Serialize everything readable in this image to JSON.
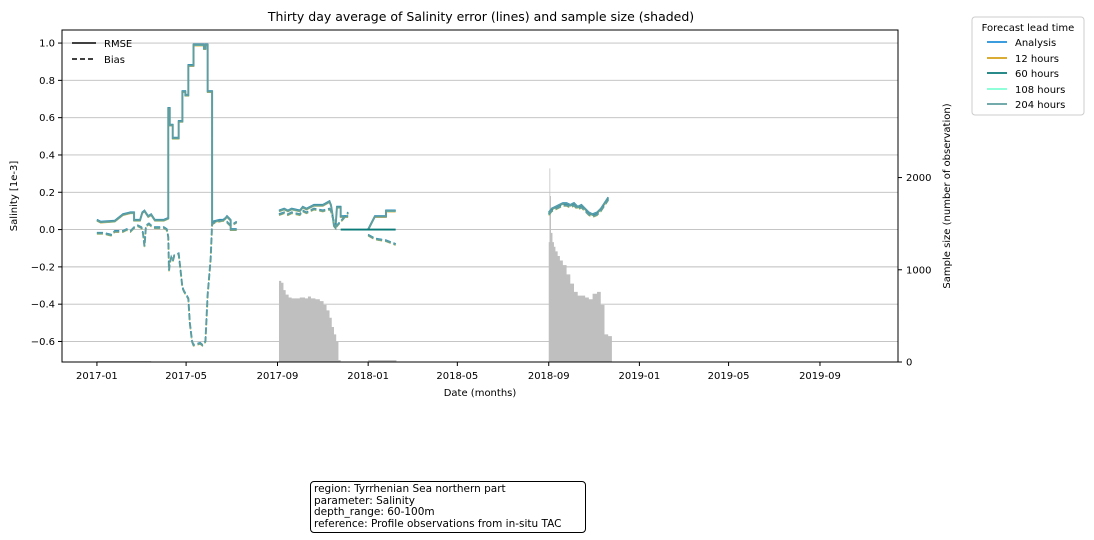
{
  "chart_data": {
    "type": "line",
    "title": "Thirty day average of Salinity error (lines) and sample size (shaded)",
    "xlabel": "Date (months)",
    "ylabel": "Salinity [1e-3]",
    "y2label": "Sample size (number of observation)",
    "xlim": [
      "2016-11-15",
      "2019-12-15"
    ],
    "ylim": [
      -0.71,
      1.07
    ],
    "y2lim": [
      0,
      3600
    ],
    "x_ticks": [
      "2017-01",
      "2017-05",
      "2017-09",
      "2018-01",
      "2018-05",
      "2018-09",
      "2019-01",
      "2019-05",
      "2019-09"
    ],
    "y_ticks": [
      1.0,
      0.8,
      0.6,
      0.4,
      0.2,
      0.0,
      -0.2,
      -0.4,
      -0.6
    ],
    "y_tick_labels": [
      "1.0",
      "0.8",
      "0.6",
      "0.4",
      "0.2",
      "0.0",
      "−0.2",
      "−0.4",
      "−0.6"
    ],
    "y2_ticks": [
      0,
      1000,
      2000
    ],
    "grid": "horizontal",
    "style_legend": {
      "placement": "top-left",
      "entries": [
        {
          "label": "RMSE",
          "dash": "solid"
        },
        {
          "label": "Bias",
          "dash": "dashed"
        }
      ]
    },
    "series_legend": {
      "title": "Forecast lead time",
      "placement": "outside-right",
      "entries": [
        {
          "label": "Analysis",
          "color": "#1f8fd8"
        },
        {
          "label": "12 hours",
          "color": "#d4a017"
        },
        {
          "label": "60 hours",
          "color": "#0a7a78"
        },
        {
          "label": "108 hours",
          "color": "#7fffd4"
        },
        {
          "label": "204 hours",
          "color": "#5f9ea0"
        }
      ]
    },
    "rmse": [
      {
        "x": [
          "2017-01-01",
          "2017-01-06",
          "2017-01-06",
          "2017-01-25",
          "2017-02-05",
          "2017-02-05",
          "2017-02-15",
          "2017-02-20",
          "2017-02-20",
          "2017-02-28",
          "2017-03-03",
          "2017-03-06",
          "2017-03-11",
          "2017-03-15",
          "2017-03-20",
          "2017-04-01",
          "2017-04-07",
          "2017-04-07",
          "2017-04-09",
          "2017-04-09",
          "2017-04-13",
          "2017-04-13",
          "2017-04-21",
          "2017-04-21",
          "2017-04-26",
          "2017-04-26",
          "2017-04-30",
          "2017-04-30",
          "2017-05-04",
          "2017-05-04",
          "2017-05-11",
          "2017-05-11",
          "2017-05-25",
          "2017-05-25",
          "2017-05-27",
          "2017-05-27",
          "2017-05-30",
          "2017-05-30",
          "2017-06-05",
          "2017-06-05",
          "2017-06-15",
          "2017-06-20",
          "2017-06-23",
          "2017-06-25",
          "2017-06-30",
          "2017-06-30",
          "2017-07-08"
        ],
        "y": [
          0.05,
          0.04,
          0.04,
          0.045,
          0.08,
          0.08,
          0.09,
          0.09,
          0.05,
          0.05,
          0.09,
          0.1,
          0.07,
          0.08,
          0.05,
          0.05,
          0.06,
          0.65,
          0.65,
          0.56,
          0.56,
          0.49,
          0.49,
          0.58,
          0.58,
          0.74,
          0.74,
          0.72,
          0.72,
          0.88,
          0.88,
          0.99,
          0.99,
          0.97,
          0.97,
          0.99,
          0.99,
          0.74,
          0.74,
          0.04,
          0.05,
          0.05,
          0.06,
          0.07,
          0.05,
          0.0,
          0.0
        ]
      },
      {
        "x": [
          "2017-09-03",
          "2017-09-10",
          "2017-09-15",
          "2017-09-20",
          "2017-10-01",
          "2017-10-05",
          "2017-10-10",
          "2017-10-20",
          "2017-11-01",
          "2017-11-10",
          "2017-11-12",
          "2017-11-14",
          "2017-11-16",
          "2017-11-18",
          "2017-11-20",
          "2017-11-25",
          "2017-11-25",
          "2017-12-05"
        ],
        "y": [
          0.1,
          0.11,
          0.1,
          0.11,
          0.1,
          0.12,
          0.11,
          0.13,
          0.13,
          0.15,
          0.13,
          0.08,
          0.02,
          0.01,
          0.12,
          0.12,
          0.07,
          0.07
        ]
      },
      {
        "x": [
          "2018-01-01",
          "2018-01-10",
          "2018-01-25",
          "2018-01-25",
          "2018-02-07"
        ],
        "y": [
          0.0,
          0.07,
          0.07,
          0.1,
          0.1
        ]
      },
      {
        "x": [
          "2017-11-25",
          "2018-01-01",
          "2018-01-01",
          "2018-02-07"
        ],
        "y": [
          0.0,
          0.0,
          0.0,
          0.0
        ],
        "color": "#0a7a78"
      },
      {
        "x": [
          "2018-09-01",
          "2018-09-05",
          "2018-09-10",
          "2018-09-15",
          "2018-09-20",
          "2018-09-25",
          "2018-09-30",
          "2018-10-05",
          "2018-10-10",
          "2018-10-15",
          "2018-10-20",
          "2018-10-25",
          "2018-10-30",
          "2018-11-05",
          "2018-11-10",
          "2018-11-15",
          "2018-11-20"
        ],
        "y": [
          0.09,
          0.11,
          0.12,
          0.13,
          0.14,
          0.14,
          0.13,
          0.14,
          0.12,
          0.13,
          0.11,
          0.09,
          0.08,
          0.09,
          0.11,
          0.14,
          0.17
        ]
      }
    ],
    "bias": [
      {
        "x": [
          "2017-01-01",
          "2017-01-10",
          "2017-01-20",
          "2017-01-25",
          "2017-02-05",
          "2017-02-10",
          "2017-02-15",
          "2017-02-20",
          "2017-02-25",
          "2017-03-02",
          "2017-03-04",
          "2017-03-06",
          "2017-03-08",
          "2017-03-12",
          "2017-03-15",
          "2017-03-20",
          "2017-04-01",
          "2017-04-05",
          "2017-04-07",
          "2017-04-08",
          "2017-04-09",
          "2017-04-11",
          "2017-04-13",
          "2017-04-15",
          "2017-04-21",
          "2017-04-23",
          "2017-04-26",
          "2017-04-28",
          "2017-05-04",
          "2017-05-06",
          "2017-05-09",
          "2017-05-11",
          "2017-05-20",
          "2017-05-23",
          "2017-05-27",
          "2017-05-30",
          "2017-06-03",
          "2017-06-05",
          "2017-06-09",
          "2017-06-20",
          "2017-06-25",
          "2017-06-30",
          "2017-07-08"
        ],
        "y": [
          -0.02,
          -0.02,
          -0.03,
          -0.01,
          -0.01,
          0.0,
          -0.01,
          0.01,
          0.02,
          0.01,
          -0.02,
          -0.09,
          0.02,
          0.03,
          0.02,
          0.01,
          0.01,
          0.0,
          -0.04,
          -0.22,
          -0.18,
          -0.15,
          -0.17,
          -0.14,
          -0.13,
          -0.2,
          -0.31,
          -0.33,
          -0.37,
          -0.5,
          -0.6,
          -0.62,
          -0.61,
          -0.62,
          -0.6,
          -0.35,
          -0.16,
          0.03,
          0.04,
          0.05,
          0.04,
          0.02,
          0.04
        ]
      },
      {
        "x": [
          "2017-09-03",
          "2017-09-10",
          "2017-09-15",
          "2017-09-20",
          "2017-10-01",
          "2017-10-05",
          "2017-10-10",
          "2017-10-20",
          "2017-11-01",
          "2017-11-10",
          "2017-11-12",
          "2017-11-16",
          "2017-11-20",
          "2017-12-01",
          "2017-12-05"
        ],
        "y": [
          0.08,
          0.09,
          0.08,
          0.09,
          0.08,
          0.1,
          0.09,
          0.11,
          0.1,
          0.11,
          0.1,
          0.04,
          0.02,
          0.07,
          0.09
        ]
      },
      {
        "x": [
          "2018-01-01",
          "2018-01-10",
          "2018-01-25",
          "2018-02-07"
        ],
        "y": [
          -0.03,
          -0.05,
          -0.06,
          -0.08
        ]
      },
      {
        "x": [
          "2018-09-01",
          "2018-09-05",
          "2018-09-10",
          "2018-09-15",
          "2018-09-20",
          "2018-09-25",
          "2018-09-30",
          "2018-10-05",
          "2018-10-10",
          "2018-10-15",
          "2018-10-20",
          "2018-10-25",
          "2018-10-30",
          "2018-11-05",
          "2018-11-10",
          "2018-11-15",
          "2018-11-20"
        ],
        "y": [
          0.08,
          0.1,
          0.11,
          0.12,
          0.13,
          0.13,
          0.12,
          0.13,
          0.11,
          0.12,
          0.1,
          0.08,
          0.07,
          0.08,
          0.1,
          0.13,
          0.16
        ]
      }
    ],
    "sample_size": {
      "x": [
        "2017-01-01",
        "2017-03-15",
        "2017-07-08",
        "2017-09-01",
        "2017-09-03",
        "2017-09-06",
        "2017-09-09",
        "2017-09-12",
        "2017-09-16",
        "2017-09-20",
        "2017-09-24",
        "2017-10-01",
        "2017-10-08",
        "2017-10-12",
        "2017-10-16",
        "2017-10-22",
        "2017-10-28",
        "2017-11-02",
        "2017-11-06",
        "2017-11-10",
        "2017-11-13",
        "2017-11-16",
        "2017-11-19",
        "2017-11-22",
        "2017-11-25",
        "2017-12-01",
        "2017-12-05",
        "2017-12-20",
        "2018-01-01",
        "2018-02-07",
        "2018-02-08",
        "2018-08-31",
        "2018-09-01",
        "2018-09-02",
        "2018-09-03",
        "2018-09-04",
        "2018-09-06",
        "2018-09-08",
        "2018-09-10",
        "2018-09-13",
        "2018-09-16",
        "2018-09-20",
        "2018-09-25",
        "2018-09-30",
        "2018-10-05",
        "2018-10-10",
        "2018-10-15",
        "2018-10-20",
        "2018-10-25",
        "2018-10-30",
        "2018-11-05",
        "2018-11-10",
        "2018-11-15",
        "2018-11-20",
        "2018-11-25",
        "2019-01-01"
      ],
      "y": [
        10,
        5,
        0,
        0,
        880,
        860,
        780,
        730,
        700,
        690,
        690,
        700,
        690,
        710,
        690,
        680,
        660,
        620,
        560,
        480,
        380,
        300,
        220,
        20,
        5,
        5,
        0,
        0,
        20,
        20,
        0,
        0,
        1300,
        2100,
        1800,
        1400,
        1300,
        1250,
        1200,
        1150,
        1100,
        1050,
        950,
        850,
        760,
        720,
        720,
        700,
        680,
        740,
        760,
        620,
        300,
        280,
        0,
        0
      ]
    }
  },
  "infobox": {
    "region": "region: Tyrrhenian Sea northern part",
    "parameter": "parameter: Salinity",
    "depth_range": "depth_range: 60-100m",
    "reference": "reference: Profile observations from in-situ TAC"
  }
}
